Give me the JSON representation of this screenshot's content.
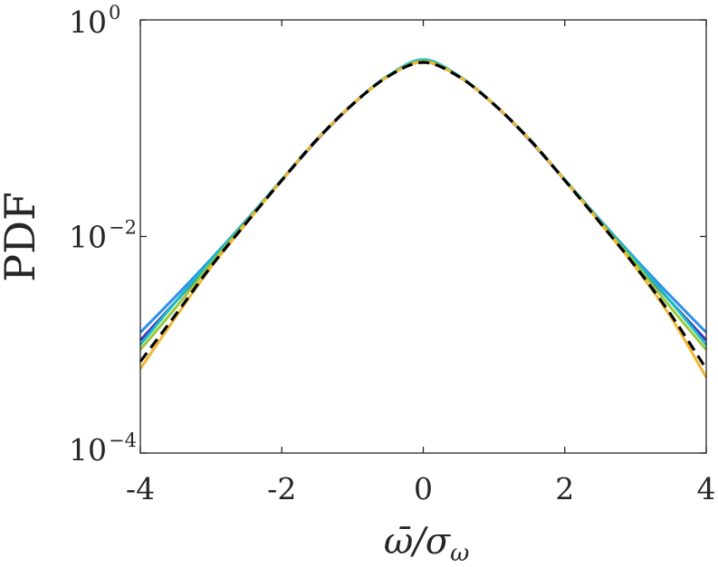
{
  "chart_data": {
    "type": "line",
    "y_scale": "log",
    "xlim": [
      -4,
      4
    ],
    "ylim": [
      0.0001,
      1
    ],
    "grid": false,
    "legend": "none",
    "xlabel": "ω̄/σω",
    "xlabel_main": "ω̄/σ",
    "xlabel_sub": "ω",
    "ylabel": "PDF",
    "x_ticks": [
      {
        "value": -4,
        "label": "-4"
      },
      {
        "value": -2,
        "label": "-2"
      },
      {
        "value": 0,
        "label": "0"
      },
      {
        "value": 2,
        "label": "2"
      },
      {
        "value": 4,
        "label": "4"
      }
    ],
    "y_ticks": [
      {
        "value": 1,
        "base": "10",
        "exp": "0"
      },
      {
        "value": 0.01,
        "base": "10",
        "exp": "−2"
      },
      {
        "value": 0.0001,
        "base": "10",
        "exp": "−4"
      }
    ],
    "series": [
      {
        "color": "#4a2fc7",
        "dash": "solid",
        "x": [
          -4,
          -3.5,
          -3,
          -2.5,
          -2,
          -1.5,
          -1,
          -0.5,
          0,
          0.5,
          1,
          1.5,
          2,
          2.5,
          3,
          3.5,
          4
        ],
        "y": [
          0.0011,
          0.0025,
          0.0058,
          0.0136,
          0.033,
          0.078,
          0.165,
          0.3,
          0.41,
          0.3,
          0.165,
          0.078,
          0.033,
          0.0136,
          0.0058,
          0.0025,
          0.0011
        ]
      },
      {
        "color": "#2d8ff0",
        "dash": "solid",
        "x": [
          -4,
          -3.5,
          -3,
          -2.5,
          -2,
          -1.5,
          -1,
          -0.5,
          0,
          0.5,
          1,
          1.5,
          2,
          2.5,
          3,
          3.5,
          4
        ],
        "y": [
          0.0013,
          0.0028,
          0.0062,
          0.0142,
          0.0335,
          0.079,
          0.166,
          0.302,
          0.425,
          0.302,
          0.166,
          0.079,
          0.0335,
          0.0142,
          0.0062,
          0.0028,
          0.0013
        ]
      },
      {
        "color": "#18bfc0",
        "dash": "solid",
        "x": [
          -4,
          -3.5,
          -3,
          -2.5,
          -2,
          -1.5,
          -1,
          -0.5,
          0,
          0.5,
          1,
          1.5,
          2,
          2.5,
          3,
          3.5,
          4
        ],
        "y": [
          0.001,
          0.0025,
          0.006,
          0.014,
          0.0335,
          0.0795,
          0.167,
          0.305,
          0.43,
          0.305,
          0.167,
          0.0795,
          0.0335,
          0.014,
          0.006,
          0.0025,
          0.001
        ]
      },
      {
        "color": "#9ac93a",
        "dash": "solid",
        "x": [
          -4,
          -3.5,
          -3,
          -2.5,
          -2,
          -1.5,
          -1,
          -0.5,
          0,
          0.5,
          1,
          1.5,
          2,
          2.5,
          3,
          3.5,
          4
        ],
        "y": [
          0.0009,
          0.0022,
          0.0056,
          0.0137,
          0.0332,
          0.079,
          0.166,
          0.3,
          0.415,
          0.3,
          0.166,
          0.079,
          0.0332,
          0.0137,
          0.0056,
          0.0022,
          0.0009
        ]
      },
      {
        "color": "#f2b631",
        "dash": "solid",
        "x": [
          -4,
          -3.5,
          -3,
          -2.5,
          -2,
          -1.5,
          -1,
          -0.5,
          0,
          0.5,
          1,
          1.5,
          2,
          2.5,
          3,
          3.5,
          4
        ],
        "y": [
          0.0006,
          0.0018,
          0.0052,
          0.0133,
          0.033,
          0.079,
          0.166,
          0.3,
          0.41,
          0.3,
          0.166,
          0.079,
          0.033,
          0.0133,
          0.0052,
          0.0018,
          0.0005
        ]
      },
      {
        "color": "#000000",
        "dash": "dashed",
        "x": [
          -4,
          -3.5,
          -3,
          -2.5,
          -2,
          -1.5,
          -1,
          -0.5,
          0,
          0.5,
          1,
          1.5,
          2,
          2.5,
          3,
          3.5,
          4
        ],
        "y": [
          0.0007,
          0.0019,
          0.0053,
          0.0134,
          0.033,
          0.079,
          0.166,
          0.3,
          0.405,
          0.3,
          0.166,
          0.079,
          0.033,
          0.0134,
          0.0053,
          0.0019,
          0.0006
        ]
      }
    ]
  }
}
